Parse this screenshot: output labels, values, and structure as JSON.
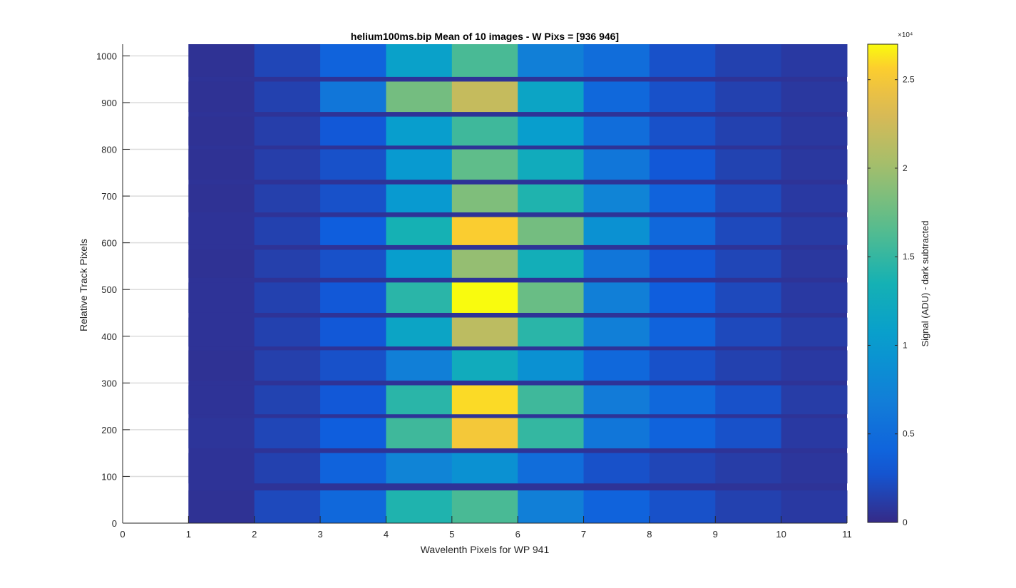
{
  "figure": {
    "title": "helium100ms.bip  Mean of 10 images - W Pixs = [936  946]",
    "xlabel": "Wavelenth Pixels for WP 941",
    "ylabel": "Relative Track Pixels",
    "colorbar_label": "Signal (ADU) - dark subtracted",
    "colorbar_exponent": "×10⁴"
  },
  "chart_data": {
    "type": "heatmap",
    "title": "helium100ms.bip  Mean of 10 images - W Pixs = [936  946]",
    "xlabel": "Wavelenth Pixels for WP 941",
    "ylabel": "Relative Track Pixels",
    "xlim": [
      0,
      11
    ],
    "ylim": [
      0,
      1025
    ],
    "xticks": [
      0,
      1,
      2,
      3,
      4,
      5,
      6,
      7,
      8,
      9,
      10,
      11
    ],
    "yticks": [
      0,
      100,
      200,
      300,
      400,
      500,
      600,
      700,
      800,
      900,
      1000
    ],
    "grid": "horizontal",
    "colormap": "parula",
    "colorbar": {
      "label": "Signal (ADU) - dark subtracted",
      "range": [
        0,
        27000
      ],
      "ticks": [
        0,
        0.5,
        1,
        1.5,
        2,
        2.5
      ],
      "tick_labels": [
        "0",
        "0.5",
        "1",
        "1.5",
        "2",
        "2.5"
      ],
      "exponent_label": "×10⁴"
    },
    "columns": [
      1,
      2,
      3,
      4,
      5,
      6,
      7,
      8,
      9,
      10
    ],
    "tracks": [
      {
        "y_range": [
          0,
          70
        ],
        "values": [
          500,
          2000,
          4500,
          14000,
          16000,
          7000,
          4000,
          2500,
          1500,
          1000
        ]
      },
      {
        "y_range": [
          85,
          150
        ],
        "values": [
          600,
          1500,
          4000,
          7500,
          9000,
          5000,
          2500,
          1800,
          1200,
          800
        ]
      },
      {
        "y_range": [
          160,
          225
        ],
        "values": [
          700,
          1800,
          3500,
          15500,
          25000,
          15000,
          6000,
          4000,
          2500,
          1000
        ]
      },
      {
        "y_range": [
          233,
          295
        ],
        "values": [
          600,
          1600,
          3000,
          14500,
          26000,
          15500,
          6500,
          4500,
          2500,
          1200
        ]
      },
      {
        "y_range": [
          305,
          370
        ],
        "values": [
          500,
          1400,
          2500,
          7000,
          12500,
          9000,
          4500,
          2500,
          1500,
          1000
        ]
      },
      {
        "y_range": [
          378,
          440
        ],
        "values": [
          600,
          1500,
          3000,
          11500,
          21500,
          14500,
          7000,
          4000,
          2000,
          1200
        ]
      },
      {
        "y_range": [
          450,
          515
        ],
        "values": [
          600,
          1500,
          3000,
          14500,
          27000,
          17500,
          7000,
          3500,
          2000,
          1000
        ]
      },
      {
        "y_range": [
          525,
          585
        ],
        "values": [
          500,
          1400,
          2500,
          10500,
          19500,
          13000,
          6000,
          3000,
          1800,
          900
        ]
      },
      {
        "y_range": [
          595,
          655
        ],
        "values": [
          600,
          1500,
          3500,
          13500,
          25500,
          18000,
          9000,
          4500,
          2000,
          1100
        ]
      },
      {
        "y_range": [
          665,
          725
        ],
        "values": [
          500,
          1400,
          2500,
          10000,
          18500,
          14000,
          7500,
          4000,
          2000,
          1000
        ]
      },
      {
        "y_range": [
          735,
          800
        ],
        "values": [
          500,
          1300,
          2500,
          10000,
          17000,
          12500,
          6000,
          3000,
          1600,
          900
        ]
      },
      {
        "y_range": [
          808,
          870
        ],
        "values": [
          500,
          1300,
          3000,
          10500,
          15500,
          10500,
          5000,
          2500,
          1500,
          900
        ]
      },
      {
        "y_range": [
          880,
          945
        ],
        "values": [
          500,
          1500,
          6000,
          18000,
          22000,
          11500,
          4500,
          2500,
          1500,
          900
        ]
      },
      {
        "y_range": [
          955,
          1025
        ],
        "values": [
          500,
          1800,
          4000,
          11000,
          16000,
          7000,
          5000,
          2500,
          1500,
          1000
        ]
      }
    ],
    "gap_value": 600
  }
}
